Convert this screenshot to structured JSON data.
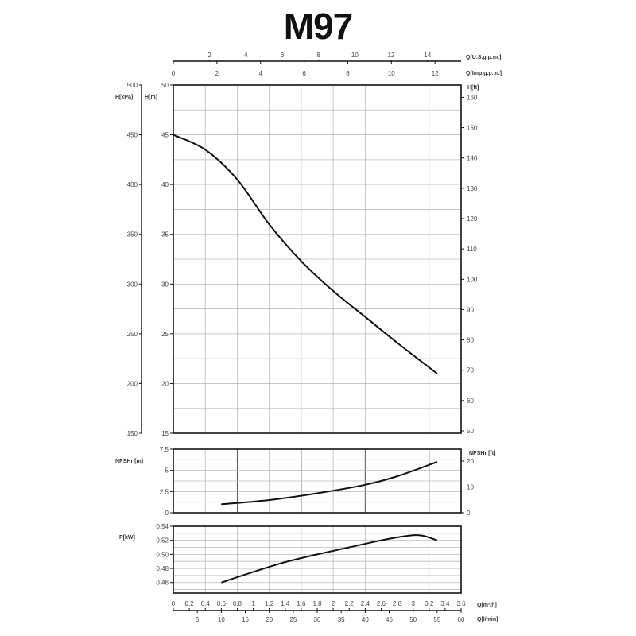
{
  "title": "M97",
  "chart_data": [
    {
      "type": "line",
      "title": "M97 - Head curve",
      "xlabel": "Q[m³/h]",
      "ylabel": "H[m]",
      "ylabel_secondary_left": "H[kPa]",
      "ylabel_secondary_right": "H[ft]",
      "xlim": [
        0,
        3.6
      ],
      "ylim": [
        15,
        50
      ],
      "ylim_kpa": [
        150,
        500
      ],
      "ylim_ft": [
        50,
        160
      ],
      "grid": true,
      "series": [
        {
          "name": "H",
          "x": [
            0,
            0.4,
            0.8,
            1.2,
            1.6,
            2.0,
            2.4,
            2.8,
            3.3
          ],
          "values": [
            45,
            43.5,
            40.5,
            36,
            32.3,
            29.3,
            26.7,
            24.1,
            21
          ]
        }
      ]
    },
    {
      "type": "line",
      "title": "NPSHr",
      "xlabel": "Q[m³/h]",
      "ylabel": "NPSHr [m]",
      "ylabel_secondary_right": "NPSHr [ft]",
      "xlim": [
        0,
        3.6
      ],
      "ylim": [
        0,
        7.5
      ],
      "ylim_ft": [
        0,
        24.6
      ],
      "grid": true,
      "series": [
        {
          "name": "NPSHr",
          "x": [
            0.6,
            1.2,
            1.8,
            2.4,
            2.8,
            3.3
          ],
          "values": [
            1.0,
            1.5,
            2.3,
            3.3,
            4.3,
            6.0
          ]
        }
      ]
    },
    {
      "type": "line",
      "title": "Power",
      "xlabel": "Q[m³/h]",
      "ylabel": "P[kW]",
      "xlim": [
        0,
        3.6
      ],
      "ylim": [
        0.45,
        0.54
      ],
      "grid": true,
      "series": [
        {
          "name": "P",
          "x": [
            0.6,
            1.0,
            1.4,
            1.8,
            2.2,
            2.6,
            2.9,
            3.1,
            3.3
          ],
          "values": [
            0.46,
            0.475,
            0.489,
            0.5,
            0.51,
            0.52,
            0.526,
            0.527,
            0.52
          ]
        }
      ]
    }
  ],
  "axes": {
    "top_usgpm": {
      "label": "Q[U.S.g.p.m.]",
      "ticks": [
        "2",
        "4",
        "6",
        "8",
        "10",
        "12",
        "14"
      ]
    },
    "top_impgpm": {
      "label": "Q[Imp.g.p.m.]",
      "ticks": [
        "0",
        "2",
        "4",
        "6",
        "8",
        "10",
        "12"
      ]
    },
    "h_kpa": {
      "label": "H[kPa]",
      "ticks": [
        "500",
        "450",
        "400",
        "350",
        "300",
        "250",
        "200",
        "150"
      ]
    },
    "h_m": {
      "label": "H[m]",
      "ticks": [
        "50",
        "45",
        "40",
        "35",
        "30",
        "25",
        "20",
        "15"
      ]
    },
    "h_ft": {
      "label": "H[ft]",
      "ticks": [
        "160",
        "150",
        "140",
        "130",
        "120",
        "110",
        "100",
        "90",
        "80",
        "70",
        "60",
        "50"
      ]
    },
    "npsh_m": {
      "label": "NPSHr [m]",
      "ticks": [
        "7.5",
        "5",
        "2.5",
        "0"
      ]
    },
    "npsh_ft": {
      "label": "NPSHr [ft]",
      "ticks": [
        "20",
        "10",
        "0"
      ]
    },
    "power": {
      "label": "P[kW]",
      "ticks": [
        "0.54",
        "0.52",
        "0.50",
        "0.48",
        "0.46"
      ]
    },
    "bottom_m3h": {
      "label": "Q[m³/h]",
      "ticks": [
        "0",
        "0.2",
        "0.4",
        "0.6",
        "0.8",
        "1",
        "1.2",
        "1.4",
        "1.6",
        "1.8",
        "2",
        "2.2",
        "2.4",
        "2.6",
        "2.8",
        "3",
        "3.2",
        "3.4",
        "3.6"
      ]
    },
    "bottom_lmin": {
      "label": "Q[l/min]",
      "ticks": [
        "5",
        "10",
        "15",
        "20",
        "25",
        "30",
        "35",
        "40",
        "45",
        "50",
        "55",
        "60"
      ]
    }
  }
}
